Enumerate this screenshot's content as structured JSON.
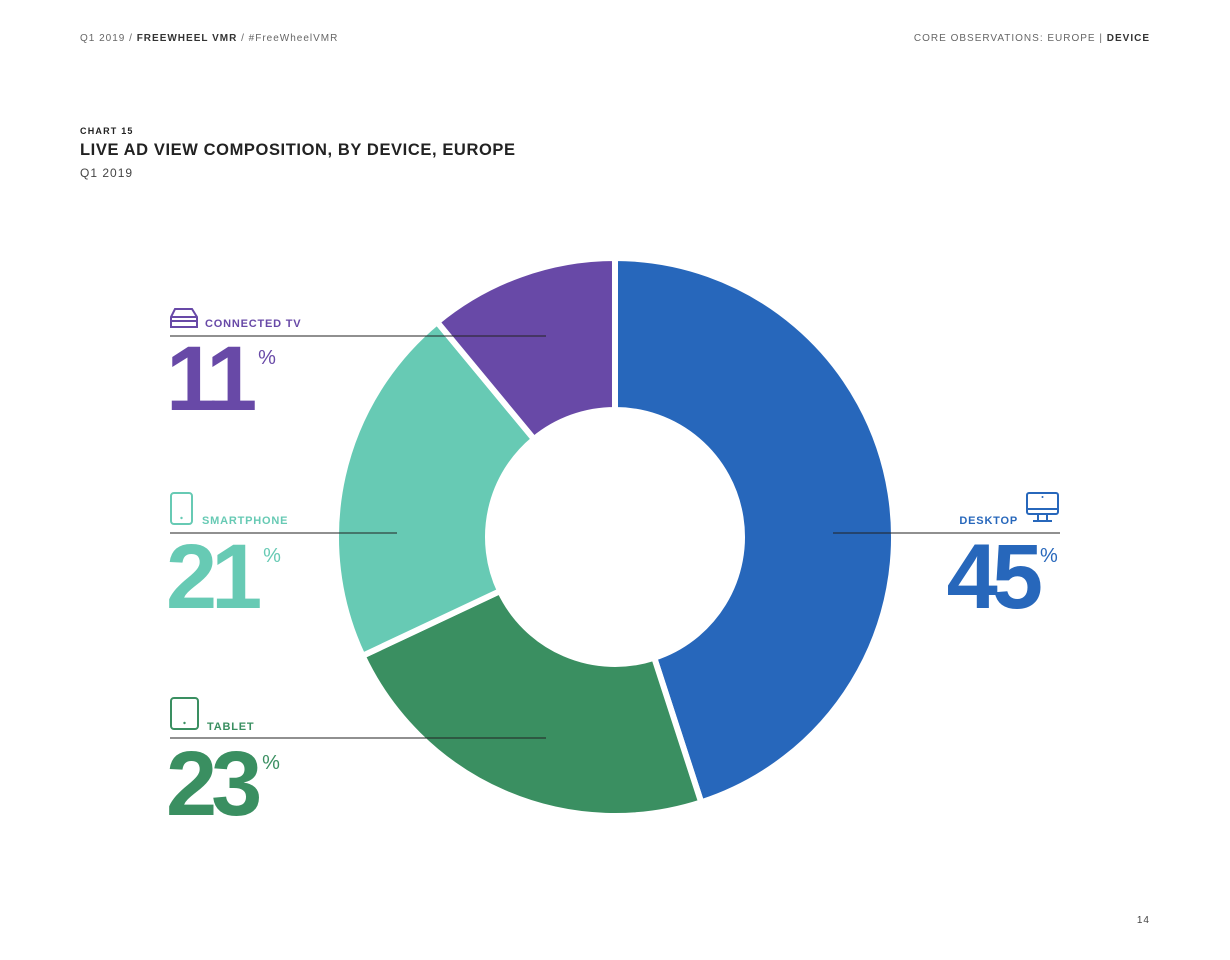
{
  "header": {
    "left_prefix": "Q1 2019 / ",
    "left_brand": "FREEWHEEL VMR",
    "left_suffix": " / #FreeWheelVMR",
    "right_section": "CORE OBSERVATIONS: EUROPE",
    "right_separator": " | ",
    "right_topic": "DEVICE"
  },
  "page_number": "14",
  "chart_data": {
    "type": "pie",
    "donut": true,
    "chart_label": "CHART 15",
    "title": "LIVE AD VIEW COMPOSITION, BY DEVICE, EUROPE",
    "subtitle": "Q1 2019",
    "unit": "%",
    "legend": "none",
    "slices": [
      {
        "name": "DESKTOP",
        "value": 45,
        "color": "#2767bb",
        "icon": "desktop-icon"
      },
      {
        "name": "TABLET",
        "value": 23,
        "color": "#3a8f61",
        "icon": "tablet-icon"
      },
      {
        "name": "SMARTPHONE",
        "value": 21,
        "color": "#67cab4",
        "icon": "smartphone-icon"
      },
      {
        "name": "CONNECTED TV",
        "value": 11,
        "color": "#6849a7",
        "icon": "connected-tv-icon"
      }
    ]
  }
}
